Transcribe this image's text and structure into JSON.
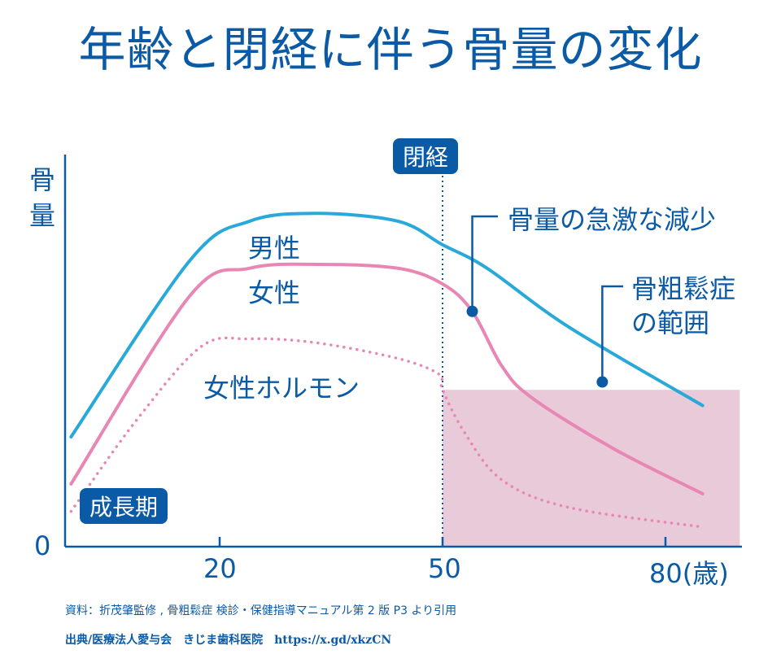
{
  "title": "年齢と閉経に伴う骨量の変化",
  "chart_data": {
    "type": "line",
    "title": "年齢と閉経に伴う骨量の変化",
    "ylabel": "骨量",
    "xlabel": "(歳)",
    "xlim": [
      0,
      90
    ],
    "ylim": [
      0,
      100
    ],
    "xticks": [
      20,
      50,
      80
    ],
    "xtick_labels": [
      "20",
      "50",
      "80(歳)"
    ],
    "y_origin_label": "0",
    "series": [
      {
        "name": "男性",
        "color": "#29a9d9",
        "style": "solid",
        "x": [
          0,
          16,
          24,
          33,
          44,
          50,
          56,
          67,
          85
        ],
        "y": [
          28,
          73,
          83,
          85,
          83,
          77,
          71,
          56,
          36
        ]
      },
      {
        "name": "女性",
        "color": "#e886b4",
        "style": "solid",
        "x": [
          0,
          16,
          24,
          33,
          44,
          50,
          54,
          58,
          62,
          73,
          85
        ],
        "y": [
          16,
          64,
          71,
          72,
          71,
          67,
          60,
          46,
          38,
          25,
          13.5
        ]
      },
      {
        "name": "女性ホルモン",
        "color": "#e886b4",
        "style": "dotted",
        "x": [
          0,
          8.7,
          17.5,
          24,
          33,
          44,
          49.5,
          50,
          53,
          58,
          67,
          85
        ],
        "y": [
          9,
          32,
          51,
          53,
          52,
          48,
          44,
          40,
          29,
          17,
          10,
          5
        ]
      }
    ],
    "menopause_age": 50,
    "menopause_label": "閉経",
    "osteoporosis_region": {
      "x": [
        50,
        90
      ],
      "y": [
        0,
        40
      ],
      "color": "#e8cad9",
      "label": "骨粗鬆症の範囲"
    },
    "annotations": [
      {
        "text": "骨量の急激な減少",
        "x": 54,
        "y": 60
      },
      {
        "text": "骨粗鬆症の範囲",
        "x": 71.5,
        "y": 42
      }
    ],
    "growth_label": "成長期"
  },
  "labels": {
    "ylabel_top": "骨",
    "ylabel_bottom": "量",
    "men": "男性",
    "women": "女性",
    "hormone": "女性ホルモン",
    "rapid": "骨量の急激な減少",
    "osteo1": "骨粗鬆症",
    "osteo2": "の範囲"
  },
  "footer": {
    "source": "資料：折茂肇監修 , 骨粗鬆症 検診・保健指導マニュアル第 2 版 P3 より引用",
    "credit": "出典/医療法人愛与会　きじま歯科医院　https://x.gd/xkzCN"
  }
}
